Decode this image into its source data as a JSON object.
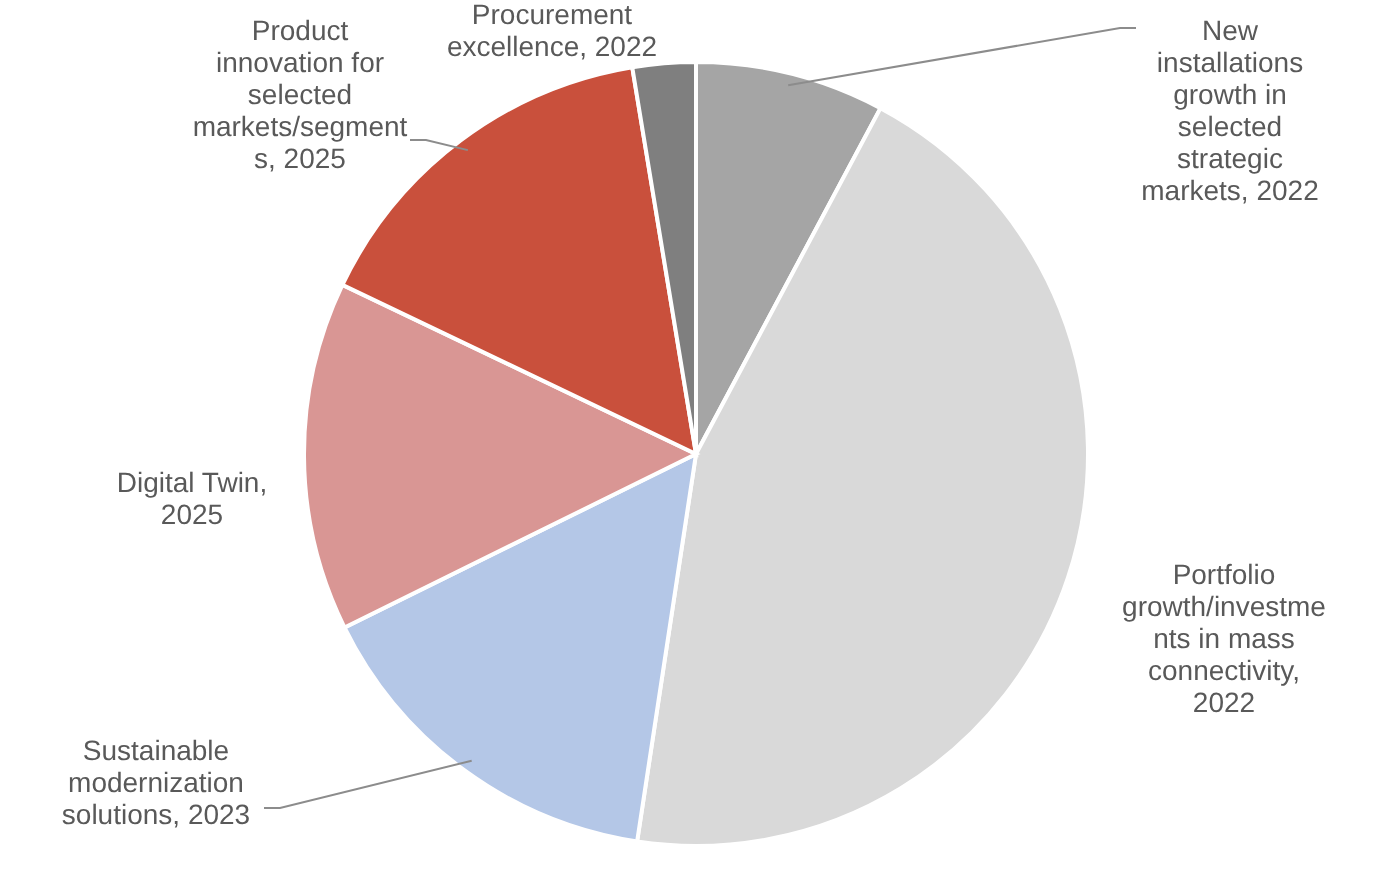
{
  "chart_data": {
    "type": "pie",
    "categories": [
      "New installations growth in selected strategic markets, 2022",
      "Portfolio growth/investments in mass connectivity, 2022",
      "Sustainable modernization solutions, 2023",
      "Digital Twin, 2025",
      "Product innovation for selected markets/segments, 2025",
      "Procurement excellence, 2022"
    ],
    "values": [
      7.8,
      44.6,
      15.3,
      14.4,
      15.3,
      2.6
    ],
    "colors": [
      "#a5a5a5",
      "#d9d9d9",
      "#b4c7e7",
      "#d99694",
      "#c9503c",
      "#7f7f7f"
    ],
    "legend": false
  }
}
